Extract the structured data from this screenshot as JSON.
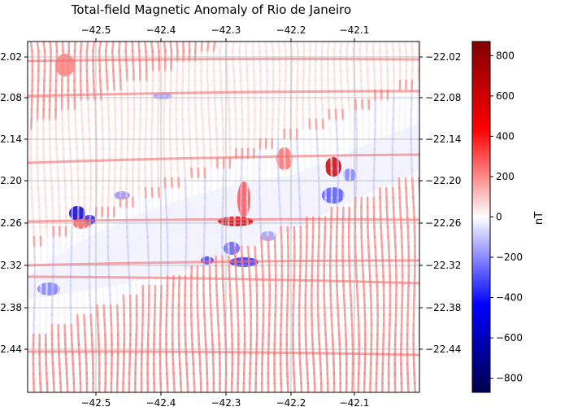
{
  "figure": {
    "title": "Total-field Magnetic Anomaly of Rio de Janeiro"
  },
  "map": {
    "lon_ticks": [
      "−42.5",
      "−42.4",
      "−42.3",
      "−42.2",
      "−42.1"
    ],
    "lat_ticks": [
      "−22.02",
      "−22.08",
      "−22.14",
      "−22.20",
      "−22.26",
      "−22.32",
      "−22.38",
      "−22.44"
    ],
    "lon_range": [
      -42.595,
      -42.01
    ],
    "lat_range": [
      -22.49,
      -22.0
    ],
    "grid": true,
    "survey_lines": "north-south flight lines with east-west tie lines",
    "features": [
      {
        "type": "negative-anomaly",
        "label": "NE-trending low band"
      },
      {
        "type": "positive-anomaly",
        "label": "dipole high near -42.27, -22.26"
      }
    ]
  },
  "colorbar": {
    "label": "nT",
    "colormap": "seismic",
    "ticks": [
      "800",
      "600",
      "400",
      "200",
      "0",
      "−200",
      "−400",
      "−600",
      "−800"
    ],
    "range": [
      -870,
      870
    ]
  },
  "colors": {
    "low": "#00004c",
    "negative": "#0000ff",
    "neutral": "#ffffff",
    "positive": "#ff0000",
    "high": "#800000"
  }
}
